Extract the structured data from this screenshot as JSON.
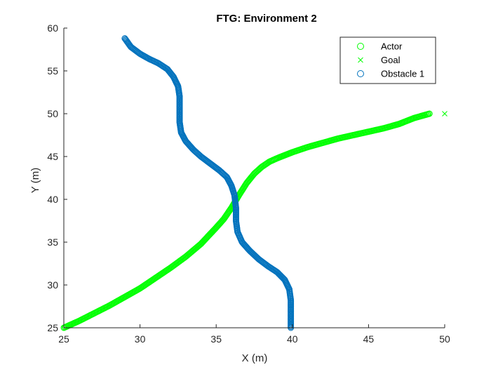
{
  "chart_data": {
    "type": "scatter",
    "title": "FTG: Environment 2",
    "xlabel": "X (m)",
    "ylabel": "Y (m)",
    "xlim": [
      25,
      50
    ],
    "ylim": [
      25,
      60
    ],
    "xticks": [
      "25",
      "30",
      "35",
      "40",
      "45",
      "50"
    ],
    "yticks": [
      "25",
      "30",
      "35",
      "40",
      "45",
      "50",
      "55",
      "60"
    ],
    "grid": false,
    "legend_position": "top-right",
    "series": [
      {
        "name": "Actor",
        "marker": "circle",
        "color": "#00ff00",
        "points": [
          [
            25.0,
            25.0
          ],
          [
            26.0,
            25.8
          ],
          [
            27.0,
            26.7
          ],
          [
            28.0,
            27.6
          ],
          [
            29.0,
            28.6
          ],
          [
            30.0,
            29.6
          ],
          [
            31.0,
            30.8
          ],
          [
            32.0,
            32.0
          ],
          [
            33.0,
            33.3
          ],
          [
            34.0,
            34.8
          ],
          [
            35.0,
            36.7
          ],
          [
            35.5,
            37.7
          ],
          [
            36.0,
            39.0
          ],
          [
            36.5,
            40.5
          ],
          [
            37.0,
            41.9
          ],
          [
            37.5,
            43.0
          ],
          [
            38.0,
            43.8
          ],
          [
            38.5,
            44.4
          ],
          [
            39.0,
            44.8
          ],
          [
            40.0,
            45.5
          ],
          [
            41.0,
            46.1
          ],
          [
            42.0,
            46.6
          ],
          [
            43.0,
            47.1
          ],
          [
            44.0,
            47.5
          ],
          [
            45.0,
            47.9
          ],
          [
            46.0,
            48.3
          ],
          [
            47.0,
            48.8
          ],
          [
            48.0,
            49.5
          ],
          [
            49.0,
            50.0
          ]
        ]
      },
      {
        "name": "Goal",
        "marker": "x",
        "color": "#00ff00",
        "points": [
          [
            50.0,
            50.0
          ]
        ]
      },
      {
        "name": "Obstacle 1",
        "marker": "circle",
        "color": "#0072bd",
        "points": [
          [
            29.0,
            58.8
          ],
          [
            29.4,
            57.8
          ],
          [
            30.0,
            57.0
          ],
          [
            30.6,
            56.4
          ],
          [
            31.2,
            55.9
          ],
          [
            31.8,
            55.2
          ],
          [
            32.2,
            54.3
          ],
          [
            32.5,
            53.2
          ],
          [
            32.6,
            52.0
          ],
          [
            32.6,
            50.5
          ],
          [
            32.6,
            49.0
          ],
          [
            32.7,
            47.8
          ],
          [
            33.0,
            46.8
          ],
          [
            33.5,
            45.8
          ],
          [
            34.0,
            45.0
          ],
          [
            34.6,
            44.2
          ],
          [
            35.2,
            43.4
          ],
          [
            35.7,
            42.6
          ],
          [
            36.0,
            41.6
          ],
          [
            36.2,
            40.5
          ],
          [
            36.3,
            39.0
          ],
          [
            36.3,
            37.5
          ],
          [
            36.4,
            36.2
          ],
          [
            36.7,
            35.0
          ],
          [
            37.2,
            34.0
          ],
          [
            37.8,
            33.0
          ],
          [
            38.4,
            32.2
          ],
          [
            39.0,
            31.5
          ],
          [
            39.5,
            30.6
          ],
          [
            39.8,
            29.5
          ],
          [
            39.9,
            28.2
          ],
          [
            39.9,
            26.8
          ],
          [
            39.9,
            25.0
          ]
        ]
      }
    ]
  }
}
